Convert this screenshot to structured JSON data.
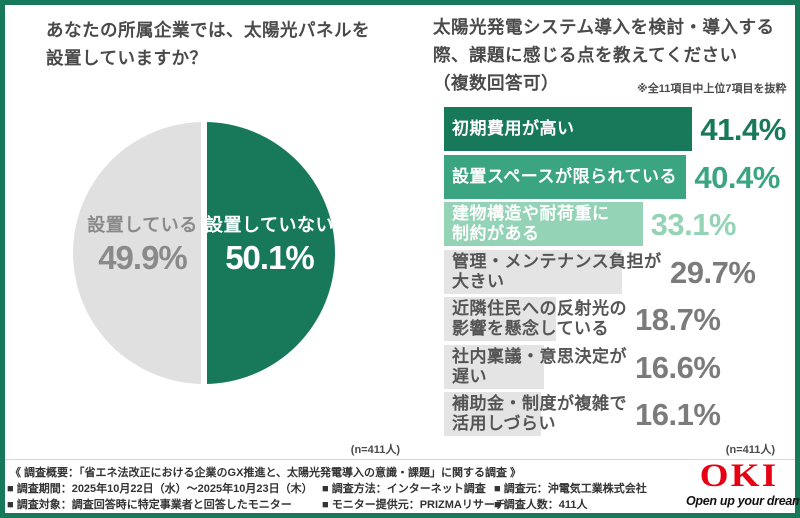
{
  "colors": {
    "frame_border": "#17795A",
    "green_dark": "#17795A",
    "green_mid": "#3BA581",
    "green_light": "#94D3B6",
    "gray_bar": "#E4E4E5",
    "gray_pie": "#E0E0E1",
    "title_text": "#4A4A4A",
    "pie_gray_text": "#8A8A8A",
    "bar_gray_label": "#555555",
    "bar_gray_value": "#7B7B7B",
    "footer_text": "#333333",
    "oki_red": "#E60012"
  },
  "pie_section": {
    "title_line1": "あなたの所属企業では、太陽光パネルを",
    "title_line2": "設置していますか？",
    "slices": [
      {
        "label": "設置している",
        "value_display": "49.9%"
      },
      {
        "label": "設置していない",
        "value_display": "50.1%"
      }
    ],
    "n_label": "(n=411人)"
  },
  "bar_section": {
    "title_line1": "太陽光発電システム導入を検討・導入する",
    "title_line2": "際、課題に感じる点を教えてください",
    "title_line3": "（複数回答可）",
    "note": "※全11項目中上位7項目を抜粋",
    "n_label": "(n=411人)"
  },
  "chart_data": [
    {
      "type": "pie",
      "title": "あなたの所属企業では、太陽光パネルを設置していますか？",
      "labels": [
        "設置している",
        "設置していない"
      ],
      "values": [
        49.9,
        50.1
      ],
      "colors": [
        "#E0E0E1",
        "#17795A"
      ],
      "start_angle_deg": 0,
      "direction": "clockwise-green-right",
      "n": 411
    },
    {
      "type": "bar",
      "orientation": "horizontal",
      "title": "太陽光発電システム導入を検討・導入する際、課題に感じる点を教えてください（複数回答可）",
      "note": "※全11項目中上位7項目を抜粋",
      "categories": [
        "初期費用が高い",
        "設置スペースが限られている",
        "建物構造や耐荷重に制約がある",
        "管理・メンテナンス負担が大きい",
        "近隣住民への反射光の影響を懸念している",
        "社内稟議・意思決定が遅い",
        "補助金・制度が複雑で活用しづらい"
      ],
      "category_lines": [
        [
          "初期費用が高い"
        ],
        [
          "設置スペースが限られている"
        ],
        [
          "建物構造や耐荷重に",
          "制約がある"
        ],
        [
          "管理・メンテナンス負担が",
          "大きい"
        ],
        [
          "近隣住民への反射光の",
          "影響を懸念している"
        ],
        [
          "社内稟議・意思決定が",
          "遅い"
        ],
        [
          "補助金・制度が複雑で",
          "活用しづらい"
        ]
      ],
      "values": [
        41.4,
        40.4,
        33.1,
        29.7,
        18.7,
        16.6,
        16.1
      ],
      "value_displays": [
        "41.4%",
        "40.4%",
        "33.1%",
        "29.7%",
        "18.7%",
        "16.6%",
        "16.1%"
      ],
      "bar_colors": [
        "#17795A",
        "#3BA581",
        "#94D3B6",
        "#E4E4E5",
        "#E4E4E5",
        "#E4E4E5",
        "#E4E4E5"
      ],
      "label_colors": [
        "#FFFFFF",
        "#FFFFFF",
        "#FFFFFF",
        "#555555",
        "#555555",
        "#555555",
        "#555555"
      ],
      "value_colors": [
        "#17795A",
        "#3BA581",
        "#94D3B6",
        "#7B7B7B",
        "#7B7B7B",
        "#7B7B7B",
        "#7B7B7B"
      ],
      "xlim": [
        0,
        50
      ],
      "grid": false,
      "legend": "none",
      "n": 411
    }
  ],
  "footer": {
    "overview": "《 調査概要：「省エネ法改正における企業のGX推進と、太陽光発電導入の意識・課題」に関する調査 》",
    "items": [
      "■ 調査期間：2025年10月22日（水）～2025年10月23日（木）",
      "■ 調査方法：インターネット調査",
      "■ 調査元：沖電気工業株式会社",
      "■ 調査対象：調査回答時に特定事業者と回答したモニター",
      "■ モニター提供元：PRIZMAリサーチ",
      "■ 調査人数：411人"
    ]
  },
  "logo": {
    "name": "OKI",
    "tagline": "Open up your dreams"
  }
}
